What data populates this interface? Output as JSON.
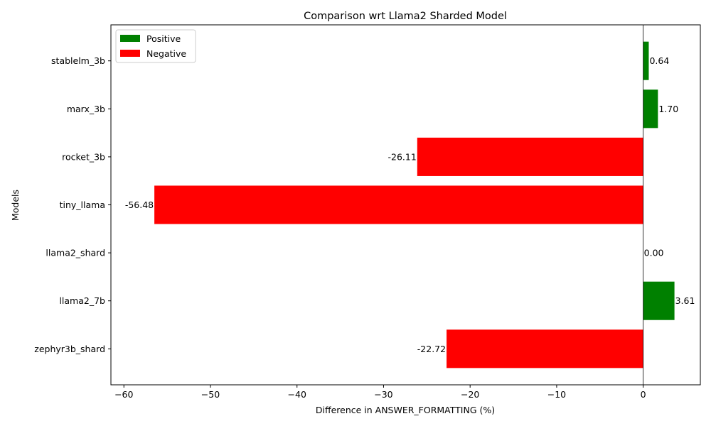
{
  "chart_data": {
    "type": "bar",
    "orientation": "horizontal",
    "title": "Comparison wrt Llama2 Sharded Model",
    "xlabel": "Difference in ANSWER_FORMATTING (%)",
    "ylabel": "Models",
    "categories": [
      "zephyr3b_shard",
      "llama2_7b",
      "llama2_shard",
      "tiny_llama",
      "rocket_3b",
      "marx_3b",
      "stablelm_3b"
    ],
    "values": [
      -22.72,
      3.61,
      0.0,
      -56.48,
      -26.11,
      1.7,
      0.64
    ],
    "value_labels": [
      "-22.72",
      "3.61",
      "0.00",
      "-56.48",
      "-26.11",
      "1.70",
      "0.64"
    ],
    "xlim": [
      -61.5,
      6.6
    ],
    "xticks": [
      -60,
      -50,
      -40,
      -30,
      -20,
      -10,
      0
    ],
    "xtick_labels": [
      "−60",
      "−50",
      "−40",
      "−30",
      "−20",
      "−10",
      "0"
    ],
    "grid": false,
    "legend": {
      "position": "upper-left",
      "entries": [
        {
          "label": "Positive",
          "color": "#008000"
        },
        {
          "label": "Negative",
          "color": "#ff0000"
        }
      ]
    },
    "colors": {
      "positive": "#008000",
      "negative": "#ff0000"
    }
  }
}
